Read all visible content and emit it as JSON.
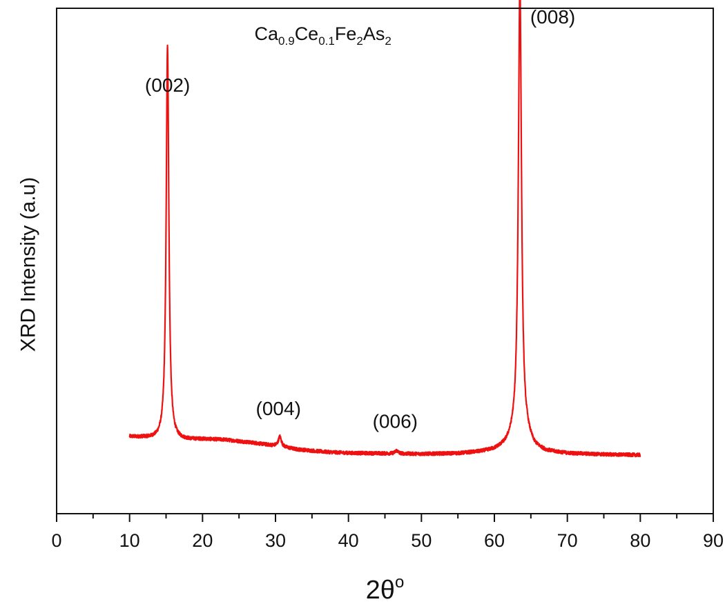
{
  "chart_data": {
    "type": "line",
    "title_parts": [
      {
        "text": "Ca",
        "sub": false
      },
      {
        "text": "0.9",
        "sub": true
      },
      {
        "text": "Ce",
        "sub": false
      },
      {
        "text": "0.1",
        "sub": true
      },
      {
        "text": "Fe",
        "sub": false
      },
      {
        "text": "2",
        "sub": true
      },
      {
        "text": "As",
        "sub": false
      },
      {
        "text": "2",
        "sub": true
      }
    ],
    "xlabel_main": "2θ",
    "xlabel_sup": "o",
    "ylabel": "XRD Intensity (a.u)",
    "xlim": [
      0,
      90
    ],
    "ylim": [
      0,
      100
    ],
    "x_ticks": [
      0,
      10,
      20,
      30,
      40,
      50,
      60,
      70,
      80,
      90
    ],
    "x_tick_labels": [
      "0",
      "10",
      "20",
      "30",
      "40",
      "50",
      "60",
      "70",
      "80",
      "90"
    ],
    "y_tick_labels": false,
    "grid": false,
    "legend": "none",
    "series": [
      {
        "color": "#ee1111",
        "baseline": [
          [
            10,
            15.2
          ],
          [
            12,
            15.0
          ],
          [
            14,
            14.6
          ],
          [
            16,
            14.4
          ],
          [
            20,
            14.7
          ],
          [
            23,
            14.6
          ],
          [
            27,
            14.0
          ],
          [
            30,
            13.4
          ],
          [
            33,
            12.7
          ],
          [
            37,
            12.2
          ],
          [
            40,
            12.0
          ],
          [
            45,
            11.9
          ],
          [
            50,
            11.8
          ],
          [
            55,
            11.9
          ],
          [
            58,
            12.2
          ],
          [
            60,
            12.6
          ],
          [
            61.5,
            13.4
          ],
          [
            62.5,
            14.6
          ],
          [
            64.5,
            14.6
          ],
          [
            65.5,
            13.0
          ],
          [
            67,
            12.3
          ],
          [
            70,
            11.9
          ],
          [
            75,
            11.7
          ],
          [
            80,
            11.6
          ]
        ],
        "peaks": [
          {
            "center": 15.2,
            "height": 78.0,
            "width": 0.22
          },
          {
            "center": 30.6,
            "height": 2.0,
            "width": 0.25
          },
          {
            "center": 46.6,
            "height": 0.6,
            "width": 0.25
          },
          {
            "center": 63.5,
            "height": 90.5,
            "width": 0.26
          }
        ]
      }
    ],
    "annotations": [
      {
        "text": "(002)",
        "x": 15.2,
        "y": 83.5
      },
      {
        "text": "(004)",
        "x": 30.4,
        "y": 19.5
      },
      {
        "text": "(006)",
        "x": 46.4,
        "y": 17.0
      },
      {
        "text": "(008)",
        "x": 68.0,
        "y": 97.0
      }
    ]
  }
}
